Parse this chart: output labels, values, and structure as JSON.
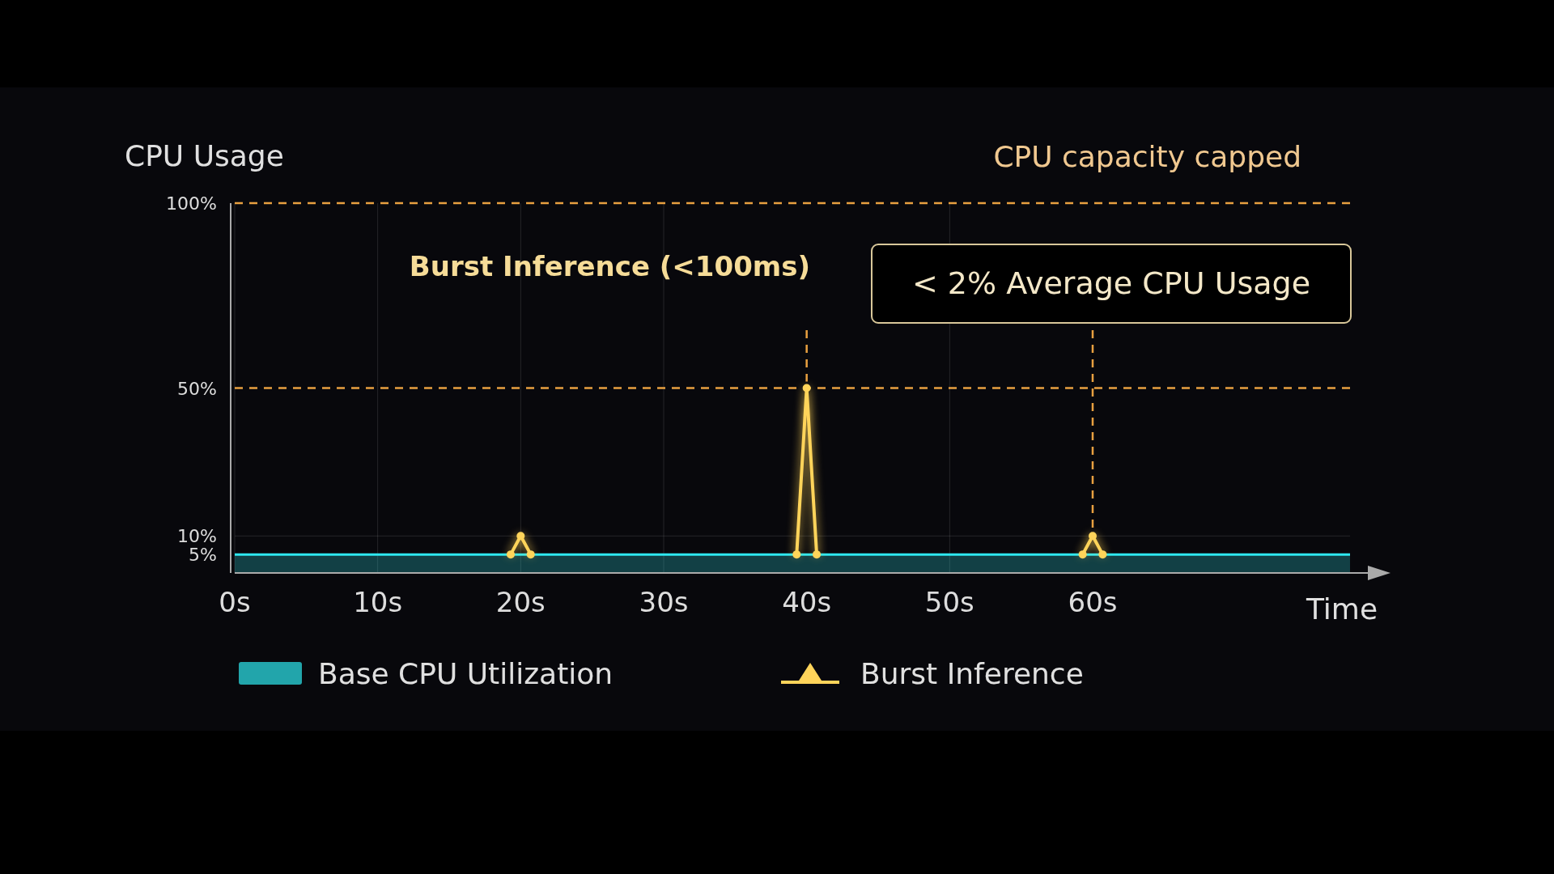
{
  "chart_data": {
    "type": "line",
    "ylabel": "CPU Usage",
    "xlabel": "Time",
    "xlim": [
      0,
      78
    ],
    "xticks": [
      {
        "value": 0,
        "label": "0s"
      },
      {
        "value": 10,
        "label": "10s"
      },
      {
        "value": 20,
        "label": "20s"
      },
      {
        "value": 30,
        "label": "30s"
      },
      {
        "value": 40,
        "label": "40s"
      },
      {
        "value": 50,
        "label": "50s"
      },
      {
        "value": 60,
        "label": "60s"
      }
    ],
    "ylim": [
      0,
      100
    ],
    "yticks": [
      {
        "value": 5,
        "label": "5%"
      },
      {
        "value": 10,
        "label": "10%"
      },
      {
        "value": 50,
        "label": "50%"
      },
      {
        "value": 100,
        "label": "100%"
      }
    ],
    "grid": true,
    "legend": "bottom",
    "series": [
      {
        "name": "Base CPU Utilization",
        "type": "area",
        "color": "#2ee8f0",
        "x": [
          0,
          10,
          20,
          30,
          40,
          50,
          60,
          70,
          78
        ],
        "values": [
          5,
          5,
          5,
          5,
          5,
          5,
          5,
          5,
          5
        ]
      },
      {
        "name": "Burst Inference",
        "color": "#ffd45a",
        "marker": "circle",
        "x": [
          19.3,
          20,
          20.7,
          30,
          39.3,
          40,
          40.7,
          50,
          59.3,
          60,
          60.7
        ],
        "values": [
          5,
          10,
          5,
          null,
          5,
          50,
          5,
          null,
          5,
          10,
          5
        ]
      }
    ],
    "ref_lines": [
      {
        "axis": "y",
        "value": 100,
        "label": "CPU capacity capped",
        "color": "#e8a040",
        "line_style": "dashed"
      },
      {
        "axis": "y",
        "value": 50,
        "color": "#e8a040",
        "line_style": "dashed"
      },
      {
        "axis": "x",
        "value": 40,
        "color": "#e8a040",
        "line_style": "dashed"
      },
      {
        "axis": "x",
        "value": 60,
        "color": "#e8a040",
        "line_style": "dashed"
      }
    ],
    "annotations": [
      "Burst Inference (<100ms)",
      "< 2% Average CPU Usage"
    ]
  }
}
